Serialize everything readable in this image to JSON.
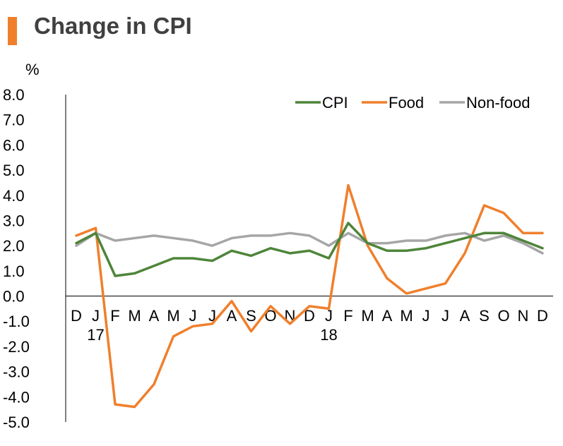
{
  "title": "Change in CPI",
  "colors": {
    "accent": "#f07f2c",
    "cpi": "#4e8539",
    "food": "#f07f2c",
    "nonfood": "#a6a6a6"
  },
  "chart_data": {
    "type": "line",
    "title": "Change in CPI",
    "ylabel": "%",
    "ylim": [
      -5.0,
      8.0
    ],
    "yticks": [
      "8.0",
      "7.0",
      "6.0",
      "5.0",
      "4.0",
      "3.0",
      "2.0",
      "1.0",
      "0.0",
      "-1.0",
      "-2.0",
      "-3.0",
      "-4.0",
      "-5.0"
    ],
    "categories": [
      "D",
      "J",
      "F",
      "M",
      "A",
      "M",
      "J",
      "J",
      "A",
      "S",
      "O",
      "N",
      "D",
      "J",
      "F",
      "M",
      "A",
      "M",
      "J",
      "J",
      "A",
      "S",
      "O",
      "N",
      "D"
    ],
    "year_labels": [
      {
        "index": 1,
        "label": "17"
      },
      {
        "index": 13,
        "label": "18"
      }
    ],
    "legend_position": "top-right",
    "grid": false,
    "series": [
      {
        "name": "CPI",
        "color": "#4e8539",
        "values": [
          2.1,
          2.5,
          0.8,
          0.9,
          1.2,
          1.5,
          1.5,
          1.4,
          1.8,
          1.6,
          1.9,
          1.7,
          1.8,
          1.5,
          2.9,
          2.1,
          1.8,
          1.8,
          1.9,
          2.1,
          2.3,
          2.5,
          2.5,
          2.2,
          1.9
        ]
      },
      {
        "name": "Food",
        "color": "#f07f2c",
        "values": [
          2.4,
          2.7,
          -4.3,
          -4.4,
          -3.5,
          -1.6,
          -1.2,
          -1.1,
          -0.2,
          -1.4,
          -0.4,
          -1.1,
          -0.4,
          -0.5,
          4.4,
          2.0,
          0.7,
          0.1,
          0.3,
          0.5,
          1.7,
          3.6,
          3.3,
          2.5,
          2.5
        ]
      },
      {
        "name": "Non-food",
        "color": "#a6a6a6",
        "values": [
          2.0,
          2.5,
          2.2,
          2.3,
          2.4,
          2.3,
          2.2,
          2.0,
          2.3,
          2.4,
          2.4,
          2.5,
          2.4,
          2.0,
          2.5,
          2.1,
          2.1,
          2.2,
          2.2,
          2.4,
          2.5,
          2.2,
          2.4,
          2.1,
          1.7
        ]
      }
    ]
  }
}
